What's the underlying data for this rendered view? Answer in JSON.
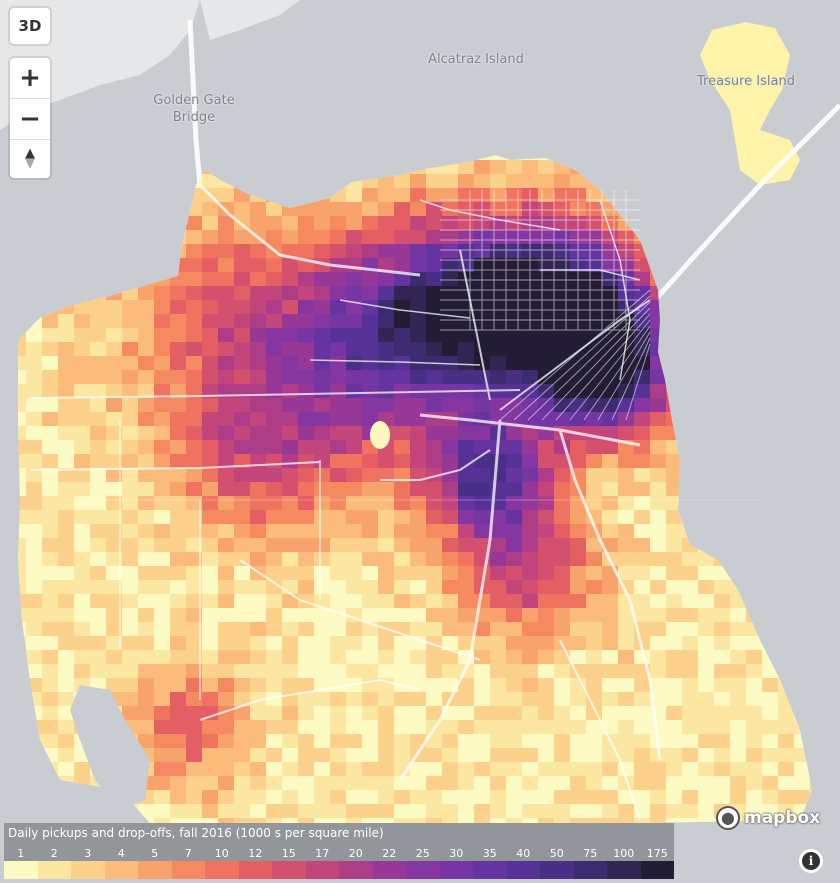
{
  "controls": {
    "view3d_label": "3D",
    "zoom_in_label": "+",
    "zoom_out_label": "−",
    "compass_label": "▲"
  },
  "places": [
    {
      "name": "Alcatraz Island"
    },
    {
      "name": "Treasure Island"
    },
    {
      "name": "Golden Gate\nBridge"
    }
  ],
  "legend": {
    "title": "Daily pickups and drop-offs, fall 2016 (1000 s per square mile)",
    "bins": [
      {
        "label": "1",
        "color": "#fdfac3"
      },
      {
        "label": "2",
        "color": "#fbe7a2"
      },
      {
        "label": "3",
        "color": "#fbd18b"
      },
      {
        "label": "4",
        "color": "#fbbb7b"
      },
      {
        "label": "5",
        "color": "#f9a36c"
      },
      {
        "label": "7",
        "color": "#f58a61"
      },
      {
        "label": "10",
        "color": "#ef735e"
      },
      {
        "label": "12",
        "color": "#e45f64"
      },
      {
        "label": "15",
        "color": "#d4506f"
      },
      {
        "label": "17",
        "color": "#c2457b"
      },
      {
        "label": "20",
        "color": "#ae3d88"
      },
      {
        "label": "22",
        "color": "#983896"
      },
      {
        "label": "25",
        "color": "#8636a0"
      },
      {
        "label": "30",
        "color": "#7535a3"
      },
      {
        "label": "35",
        "color": "#6534a0"
      },
      {
        "label": "40",
        "color": "#573296"
      },
      {
        "label": "50",
        "color": "#4a2f86"
      },
      {
        "label": "75",
        "color": "#3d2b6f"
      },
      {
        "label": "100",
        "color": "#312553"
      },
      {
        "label": "175",
        "color": "#221c34"
      }
    ]
  },
  "attribution": {
    "mapbox_label": "mapbox",
    "info_label": "i"
  },
  "colors": {
    "water": "#c9cdd2",
    "land_other": "#e8e9eb",
    "road": "#ffffff"
  }
}
